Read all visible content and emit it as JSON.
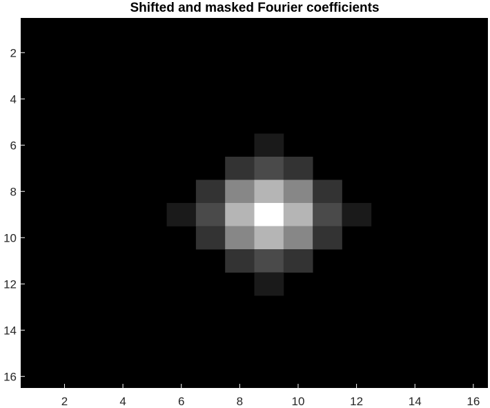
{
  "chart_data": {
    "type": "heatmap",
    "title": "Shifted and masked Fourier coefficients",
    "xlabel": "",
    "ylabel": "",
    "colormap": "gray",
    "background_color": "#000000",
    "x_range": [
      1,
      16
    ],
    "y_range": [
      1,
      16
    ],
    "y_direction": "top-to-bottom",
    "xticks": [
      2,
      4,
      6,
      8,
      10,
      12,
      14,
      16
    ],
    "yticks": [
      2,
      4,
      6,
      8,
      10,
      12,
      14,
      16
    ],
    "value_range": [
      0,
      1
    ],
    "cells": [
      {
        "row": 6,
        "col": 9,
        "value": 0.1
      },
      {
        "row": 7,
        "col": 8,
        "value": 0.2
      },
      {
        "row": 7,
        "col": 9,
        "value": 0.29
      },
      {
        "row": 7,
        "col": 10,
        "value": 0.2
      },
      {
        "row": 8,
        "col": 7,
        "value": 0.2
      },
      {
        "row": 8,
        "col": 8,
        "value": 0.53
      },
      {
        "row": 8,
        "col": 9,
        "value": 0.71
      },
      {
        "row": 8,
        "col": 10,
        "value": 0.53
      },
      {
        "row": 8,
        "col": 11,
        "value": 0.2
      },
      {
        "row": 9,
        "col": 6,
        "value": 0.1
      },
      {
        "row": 9,
        "col": 7,
        "value": 0.29
      },
      {
        "row": 9,
        "col": 8,
        "value": 0.71
      },
      {
        "row": 9,
        "col": 9,
        "value": 1.0
      },
      {
        "row": 9,
        "col": 10,
        "value": 0.71
      },
      {
        "row": 9,
        "col": 11,
        "value": 0.29
      },
      {
        "row": 9,
        "col": 12,
        "value": 0.1
      },
      {
        "row": 10,
        "col": 7,
        "value": 0.2
      },
      {
        "row": 10,
        "col": 8,
        "value": 0.53
      },
      {
        "row": 10,
        "col": 9,
        "value": 0.71
      },
      {
        "row": 10,
        "col": 10,
        "value": 0.53
      },
      {
        "row": 10,
        "col": 11,
        "value": 0.2
      },
      {
        "row": 11,
        "col": 8,
        "value": 0.2
      },
      {
        "row": 11,
        "col": 9,
        "value": 0.29
      },
      {
        "row": 11,
        "col": 10,
        "value": 0.2
      },
      {
        "row": 12,
        "col": 9,
        "value": 0.1
      }
    ]
  }
}
